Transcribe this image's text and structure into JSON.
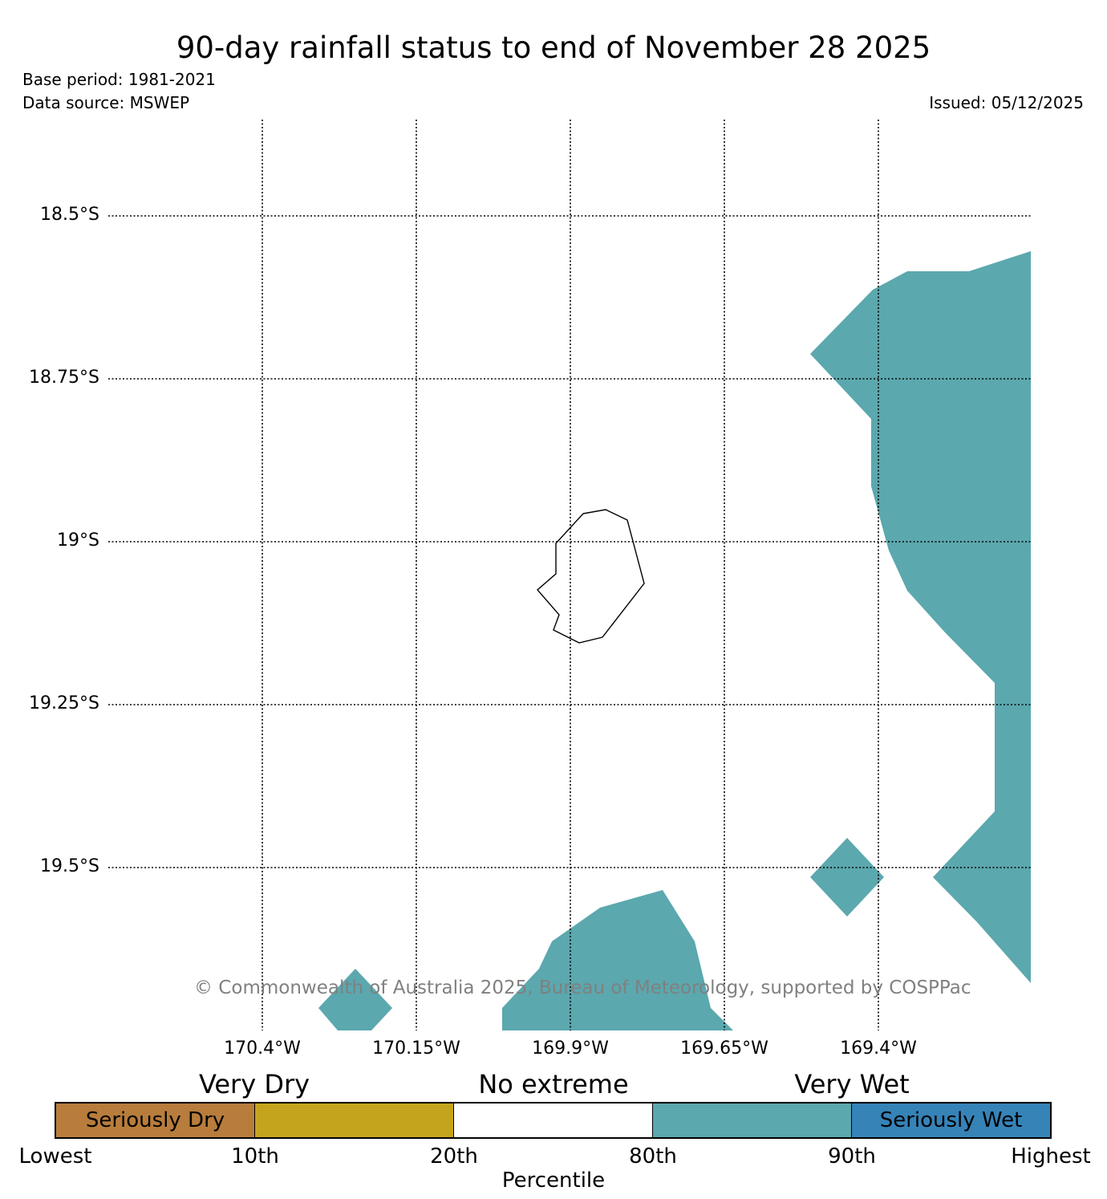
{
  "header": {
    "title": "90-day rainfall status to end of November 28 2025",
    "base_period": "Base period: 1981-2021",
    "data_source": "Data source: MSWEP",
    "issued": "Issued: 05/12/2025"
  },
  "map": {
    "lat_labels": [
      "18.5°S",
      "18.75°S",
      "19°S",
      "19.25°S",
      "19.5°S"
    ],
    "lon_labels": [
      "170.4°W",
      "170.15°W",
      "169.9°W",
      "169.65°W",
      "169.4°W"
    ],
    "wet_color": "#5ba8ae",
    "grid": true,
    "copyright": "© Commonwealth of Australia 2025, Bureau of Meteorology, supported by COSPPac"
  },
  "legend": {
    "category_heads": [
      "Very Dry",
      "No extreme",
      "Very Wet"
    ],
    "segments": [
      {
        "label": "Seriously Dry",
        "color": "#b87d3c"
      },
      {
        "label": "",
        "color": "#c5a41d"
      },
      {
        "label": "",
        "color": "#ffffff"
      },
      {
        "label": "",
        "color": "#5ba8ae"
      },
      {
        "label": "Seriously Wet",
        "color": "#3683b8"
      }
    ],
    "ticks": [
      "Lowest",
      "10th",
      "20th",
      "80th",
      "90th",
      "Highest"
    ],
    "axis_label": "Percentile"
  }
}
